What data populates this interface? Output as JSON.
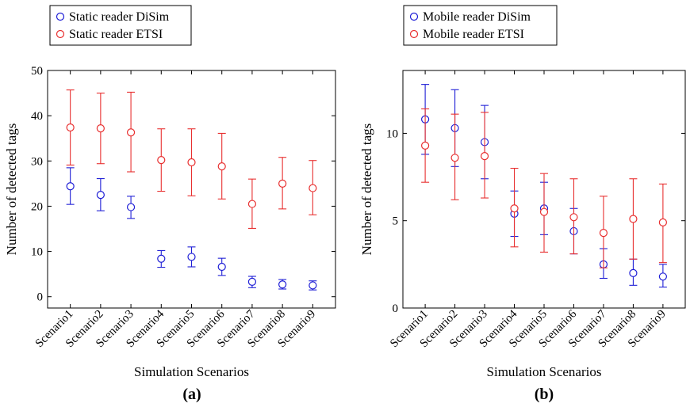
{
  "colors": {
    "disim": "#1f1fd6",
    "etsi": "#e83030",
    "frame": "#000000"
  },
  "chart_data": [
    {
      "panel_label": "(a)",
      "type": "scatter",
      "error_bars": true,
      "xlabel": "Simulation Scenarios",
      "ylabel": "Number of detected tags",
      "categories": [
        "Scenario1",
        "Scenario2",
        "Scenario3",
        "Scenario4",
        "Scenario5",
        "Scenario6",
        "Scenario7",
        "Scenario8",
        "Scenario9"
      ],
      "ylim": [
        -2.5,
        50
      ],
      "yticks": [
        "0",
        "10",
        "20",
        "30",
        "40",
        "50"
      ],
      "ytick_values": [
        0,
        10,
        20,
        30,
        40,
        50
      ],
      "legend": "top-left (outside)",
      "series": [
        {
          "name": "Static reader DiSim",
          "color": "#1f1fd6",
          "values": [
            24.4,
            22.5,
            19.8,
            8.4,
            8.8,
            6.6,
            3.3,
            2.7,
            2.5
          ],
          "err_low": [
            20.4,
            19.0,
            17.3,
            6.5,
            6.6,
            4.7,
            2.0,
            1.7,
            1.5
          ],
          "err_high": [
            28.5,
            26.1,
            22.2,
            10.2,
            11.0,
            8.5,
            4.5,
            3.8,
            3.5
          ]
        },
        {
          "name": "Static reader ETSI",
          "color": "#e83030",
          "values": [
            37.4,
            37.2,
            36.3,
            30.2,
            29.7,
            28.8,
            20.5,
            25.0,
            24.0
          ],
          "err_low": [
            29.1,
            29.4,
            27.6,
            23.3,
            22.3,
            21.6,
            15.1,
            19.4,
            18.1
          ],
          "err_high": [
            45.7,
            45.0,
            45.2,
            37.1,
            37.1,
            36.1,
            26.0,
            30.8,
            30.1
          ]
        }
      ]
    },
    {
      "panel_label": "(b)",
      "type": "scatter",
      "error_bars": true,
      "xlabel": "Simulation Scenarios",
      "ylabel": "Number of detected tags",
      "categories": [
        "Scenario1",
        "Scenario2",
        "Scenario3",
        "Scenario4",
        "Scenario5",
        "Scenario6",
        "Scenario7",
        "Scenario8",
        "Scenario9"
      ],
      "ylim": [
        0,
        13.6
      ],
      "yticks": [
        "0",
        "5",
        "10"
      ],
      "ytick_values": [
        0,
        5,
        10
      ],
      "legend": "top-left (outside)",
      "series": [
        {
          "name": "Mobile reader DiSim",
          "color": "#1f1fd6",
          "values": [
            10.8,
            10.3,
            9.5,
            5.4,
            5.7,
            4.4,
            2.5,
            2.0,
            1.8
          ],
          "err_low": [
            8.8,
            8.1,
            7.4,
            4.1,
            4.2,
            3.1,
            1.7,
            1.3,
            1.2
          ],
          "err_high": [
            12.8,
            12.5,
            11.6,
            6.7,
            7.2,
            5.7,
            3.4,
            2.8,
            2.5
          ]
        },
        {
          "name": "Mobile reader ETSI",
          "color": "#e83030",
          "values": [
            9.3,
            8.6,
            8.7,
            5.7,
            5.5,
            5.2,
            4.3,
            5.1,
            4.9
          ],
          "err_low": [
            7.2,
            6.2,
            6.3,
            3.5,
            3.2,
            3.1,
            2.3,
            2.8,
            2.6
          ],
          "err_high": [
            11.4,
            11.1,
            11.2,
            8.0,
            7.7,
            7.4,
            6.4,
            7.4,
            7.1
          ]
        }
      ]
    }
  ]
}
